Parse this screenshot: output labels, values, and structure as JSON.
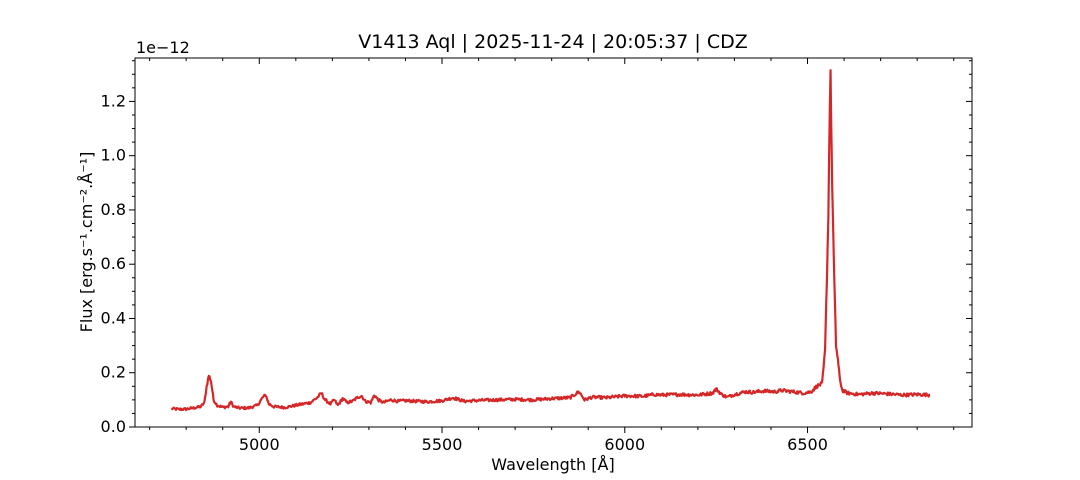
{
  "chart_data": {
    "type": "line",
    "title": "V1413 Aql | 2025-11-24 | 20:05:37 | CDZ",
    "xlabel": "Wavelength [Å]",
    "ylabel": "Flux [erg.s⁻¹.cm⁻².Å⁻¹]",
    "y_offset_text": "1e−12",
    "xlim": [
      4660,
      6950
    ],
    "ylim": [
      0,
      1.36
    ],
    "xticks": [
      5000,
      5500,
      6000,
      6500
    ],
    "xtick_labels": [
      "5000",
      "5500",
      "6000",
      "6500"
    ],
    "yticks": [
      0.0,
      0.2,
      0.4,
      0.6,
      0.8,
      1.0,
      1.2
    ],
    "ytick_labels": [
      "0.0",
      "0.2",
      "0.4",
      "0.6",
      "0.8",
      "1.0",
      "1.2"
    ],
    "grid": false,
    "line_color": "#d62728",
    "series": [
      {
        "x": [
          4760,
          4780,
          4800,
          4820,
          4840,
          4850,
          4856,
          4862,
          4868,
          4875,
          4885,
          4900,
          4915,
          4922,
          4930,
          4945,
          4970,
          4995,
          5010,
          5018,
          5026,
          5040,
          5070,
          5100,
          5140,
          5160,
          5170,
          5180,
          5195,
          5205,
          5215,
          5228,
          5240,
          5255,
          5270,
          5280,
          5290,
          5305,
          5315,
          5325,
          5340,
          5360,
          5380,
          5400,
          5430,
          5460,
          5500,
          5530,
          5560,
          5600,
          5650,
          5700,
          5750,
          5800,
          5850,
          5875,
          5890,
          5910,
          5950,
          5980,
          6000,
          6050,
          6080,
          6100,
          6150,
          6200,
          6240,
          6250,
          6265,
          6280,
          6300,
          6330,
          6350,
          6380,
          6410,
          6430,
          6460,
          6490,
          6510,
          6525,
          6540,
          6548,
          6553,
          6557,
          6561,
          6563,
          6566,
          6569,
          6573,
          6578,
          6583,
          6588,
          6595,
          6610,
          6640,
          6680,
          6720,
          6760,
          6800,
          6835
        ],
        "y": [
          0.068,
          0.065,
          0.066,
          0.07,
          0.075,
          0.09,
          0.15,
          0.19,
          0.17,
          0.1,
          0.08,
          0.073,
          0.075,
          0.093,
          0.075,
          0.07,
          0.07,
          0.08,
          0.11,
          0.118,
          0.085,
          0.075,
          0.072,
          0.08,
          0.09,
          0.11,
          0.125,
          0.1,
          0.085,
          0.1,
          0.08,
          0.105,
          0.09,
          0.095,
          0.11,
          0.115,
          0.095,
          0.09,
          0.118,
          0.1,
          0.09,
          0.1,
          0.095,
          0.097,
          0.095,
          0.093,
          0.097,
          0.108,
          0.095,
          0.098,
          0.1,
          0.102,
          0.1,
          0.105,
          0.108,
          0.13,
          0.1,
          0.11,
          0.108,
          0.112,
          0.115,
          0.113,
          0.12,
          0.118,
          0.12,
          0.118,
          0.125,
          0.14,
          0.12,
          0.11,
          0.12,
          0.13,
          0.128,
          0.133,
          0.13,
          0.135,
          0.13,
          0.125,
          0.13,
          0.15,
          0.16,
          0.28,
          0.55,
          0.78,
          1.2,
          1.31,
          1.0,
          0.8,
          0.55,
          0.3,
          0.25,
          0.18,
          0.135,
          0.125,
          0.12,
          0.125,
          0.122,
          0.118,
          0.12,
          0.118
        ]
      }
    ]
  }
}
